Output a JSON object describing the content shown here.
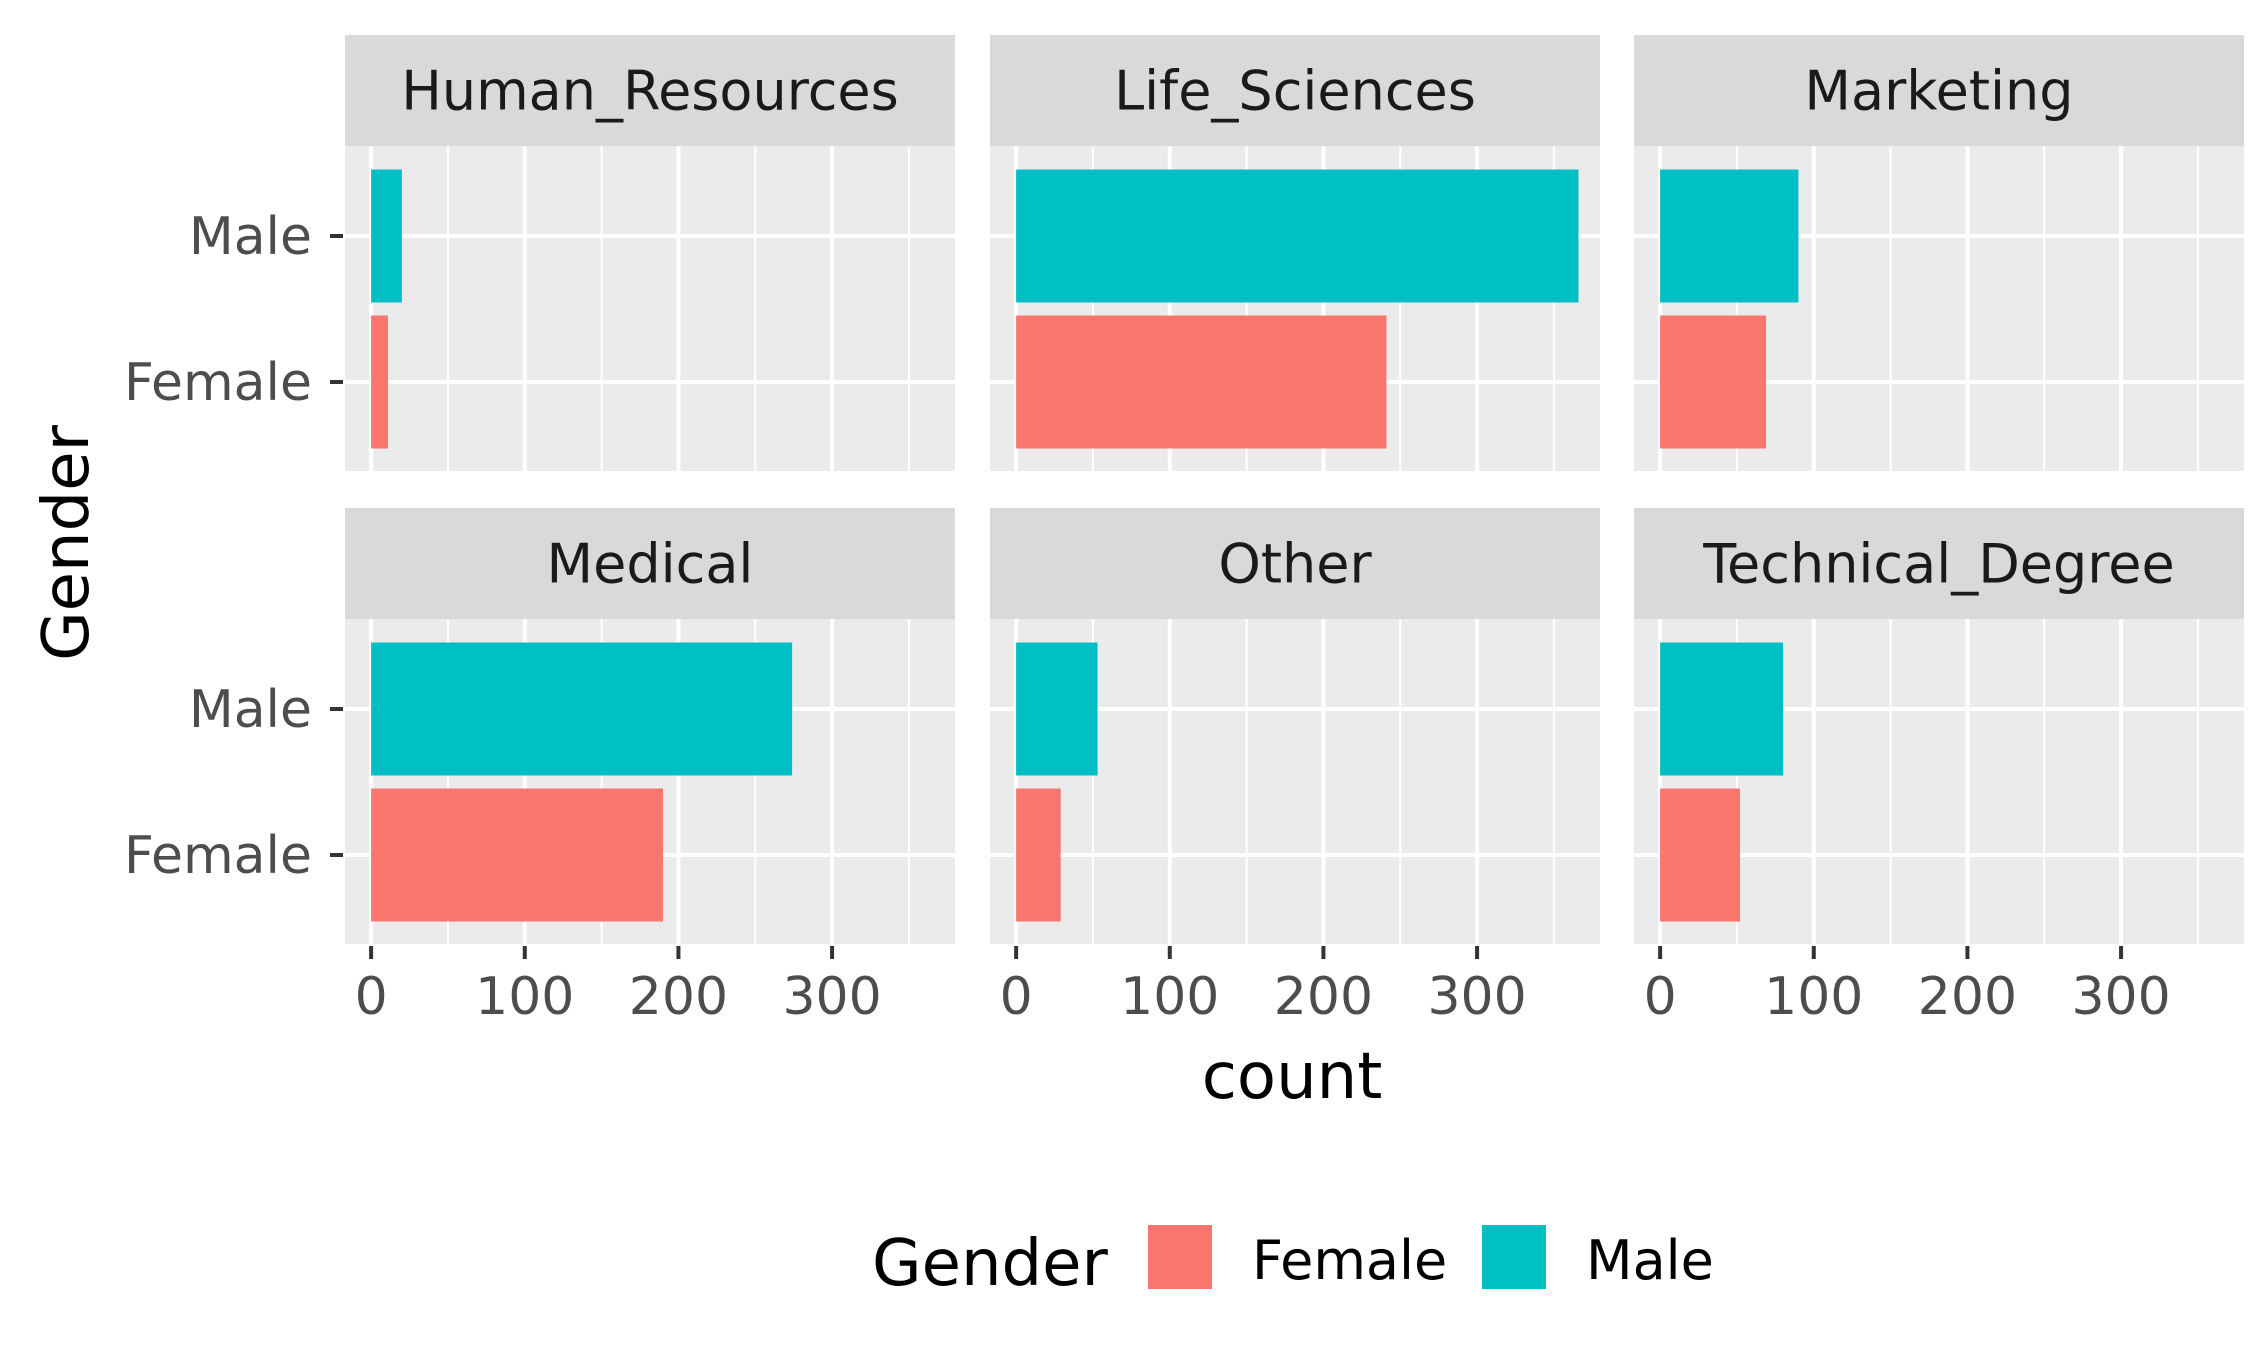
{
  "chart_data": {
    "type": "bar",
    "orientation": "horizontal",
    "facet_variable": "EducationField",
    "facets": [
      {
        "name": "Human_Resources",
        "values": {
          "Female": 11,
          "Male": 20
        }
      },
      {
        "name": "Life_Sciences",
        "values": {
          "Female": 241,
          "Male": 366
        }
      },
      {
        "name": "Marketing",
        "values": {
          "Female": 69,
          "Male": 90
        }
      },
      {
        "name": "Medical",
        "values": {
          "Female": 190,
          "Male": 274
        }
      },
      {
        "name": "Other",
        "values": {
          "Female": 29,
          "Male": 53
        }
      },
      {
        "name": "Technical_Degree",
        "values": {
          "Female": 52,
          "Male": 80
        }
      }
    ],
    "categories": [
      "Female",
      "Male"
    ],
    "xlabel": "count",
    "ylabel": "Gender",
    "xlim": [
      -17,
      380
    ],
    "xticks": [
      0,
      100,
      200,
      300
    ],
    "xtick_labels": [
      "0",
      "100",
      "200",
      "300"
    ],
    "grid": true,
    "legend": {
      "title": "Gender",
      "position": "bottom",
      "entries": [
        {
          "label": "Female",
          "color": "#F8766D"
        },
        {
          "label": "Male",
          "color": "#00BFC4"
        }
      ]
    },
    "colors": {
      "Female": "#F8766D",
      "Male": "#00BFC4"
    }
  }
}
